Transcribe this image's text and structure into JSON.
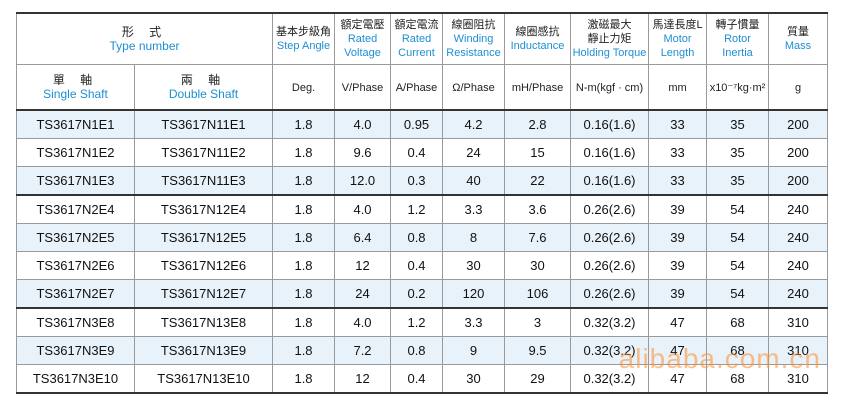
{
  "headers": {
    "type_number": {
      "zh": "形  式",
      "en": "Type number"
    },
    "single_shaft": {
      "zh": "單 軸",
      "en": "Single Shaft"
    },
    "double_shaft": {
      "zh": "兩 軸",
      "en": "Double Shaft"
    },
    "step_angle": {
      "zh": "基本步級角",
      "en": "Step Angle",
      "unit": "Deg."
    },
    "rated_voltage": {
      "zh": "額定電壓",
      "en1": "Rated",
      "en2": "Voltage",
      "unit": "V/Phase"
    },
    "rated_current": {
      "zh": "額定電流",
      "en1": "Rated",
      "en2": "Current",
      "unit": "A/Phase"
    },
    "winding_resistance": {
      "zh": "線圈阻抗",
      "en1": "Winding",
      "en2": "Resistance",
      "unit": "Ω/Phase"
    },
    "inductance": {
      "zh": "線圈感抗",
      "en": "Inductance",
      "unit": "mH/Phase"
    },
    "holding_torque": {
      "zh1": "激磁最大",
      "zh2": "靜止力矩",
      "en": "Holding Torque",
      "unit": "N-m(kgf · cm)"
    },
    "motor_length": {
      "zh": "馬達長度L",
      "en1": "Motor",
      "en2": "Length",
      "unit": "mm"
    },
    "rotor_inertia": {
      "zh": "轉子慣量",
      "en1": "Rotor",
      "en2": "Inertia",
      "unit": "x10⁻⁷kg·m²"
    },
    "mass": {
      "zh": "質量",
      "en": "Mass",
      "unit": "g"
    }
  },
  "rows": [
    {
      "single": "TS3617N1E1",
      "double": "TS3617N11E1",
      "deg": "1.8",
      "v": "4.0",
      "a": "0.95",
      "ohm": "4.2",
      "mh": "2.8",
      "torque": "0.16(1.6)",
      "len": "33",
      "inertia": "35",
      "mass": "200"
    },
    {
      "single": "TS3617N1E2",
      "double": "TS3617N11E2",
      "deg": "1.8",
      "v": "9.6",
      "a": "0.4",
      "ohm": "24",
      "mh": "15",
      "torque": "0.16(1.6)",
      "len": "33",
      "inertia": "35",
      "mass": "200"
    },
    {
      "single": "TS3617N1E3",
      "double": "TS3617N11E3",
      "deg": "1.8",
      "v": "12.0",
      "a": "0.3",
      "ohm": "40",
      "mh": "22",
      "torque": "0.16(1.6)",
      "len": "33",
      "inertia": "35",
      "mass": "200"
    },
    {
      "single": "TS3617N2E4",
      "double": "TS3617N12E4",
      "deg": "1.8",
      "v": "4.0",
      "a": "1.2",
      "ohm": "3.3",
      "mh": "3.6",
      "torque": "0.26(2.6)",
      "len": "39",
      "inertia": "54",
      "mass": "240"
    },
    {
      "single": "TS3617N2E5",
      "double": "TS3617N12E5",
      "deg": "1.8",
      "v": "6.4",
      "a": "0.8",
      "ohm": "8",
      "mh": "7.6",
      "torque": "0.26(2.6)",
      "len": "39",
      "inertia": "54",
      "mass": "240"
    },
    {
      "single": "TS3617N2E6",
      "double": "TS3617N12E6",
      "deg": "1.8",
      "v": "12",
      "a": "0.4",
      "ohm": "30",
      "mh": "30",
      "torque": "0.26(2.6)",
      "len": "39",
      "inertia": "54",
      "mass": "240"
    },
    {
      "single": "TS3617N2E7",
      "double": "TS3617N12E7",
      "deg": "1.8",
      "v": "24",
      "a": "0.2",
      "ohm": "120",
      "mh": "106",
      "torque": "0.26(2.6)",
      "len": "39",
      "inertia": "54",
      "mass": "240"
    },
    {
      "single": "TS3617N3E8",
      "double": "TS3617N13E8",
      "deg": "1.8",
      "v": "4.0",
      "a": "1.2",
      "ohm": "3.3",
      "mh": "3",
      "torque": "0.32(3.2)",
      "len": "47",
      "inertia": "68",
      "mass": "310"
    },
    {
      "single": "TS3617N3E9",
      "double": "TS3617N13E9",
      "deg": "1.8",
      "v": "7.2",
      "a": "0.8",
      "ohm": "9",
      "mh": "9.5",
      "torque": "0.32(3.2)",
      "len": "47",
      "inertia": "68",
      "mass": "310"
    },
    {
      "single": "TS3617N3E10",
      "double": "TS3617N13E10",
      "deg": "1.8",
      "v": "12",
      "a": "0.4",
      "ohm": "30",
      "mh": "29",
      "torque": "0.32(3.2)",
      "len": "47",
      "inertia": "68",
      "mass": "310"
    }
  ],
  "shaded_rows": [
    0,
    2,
    4,
    6,
    8
  ],
  "group_start_rows": [
    3,
    7
  ],
  "watermark": "alibaba.com.cn"
}
